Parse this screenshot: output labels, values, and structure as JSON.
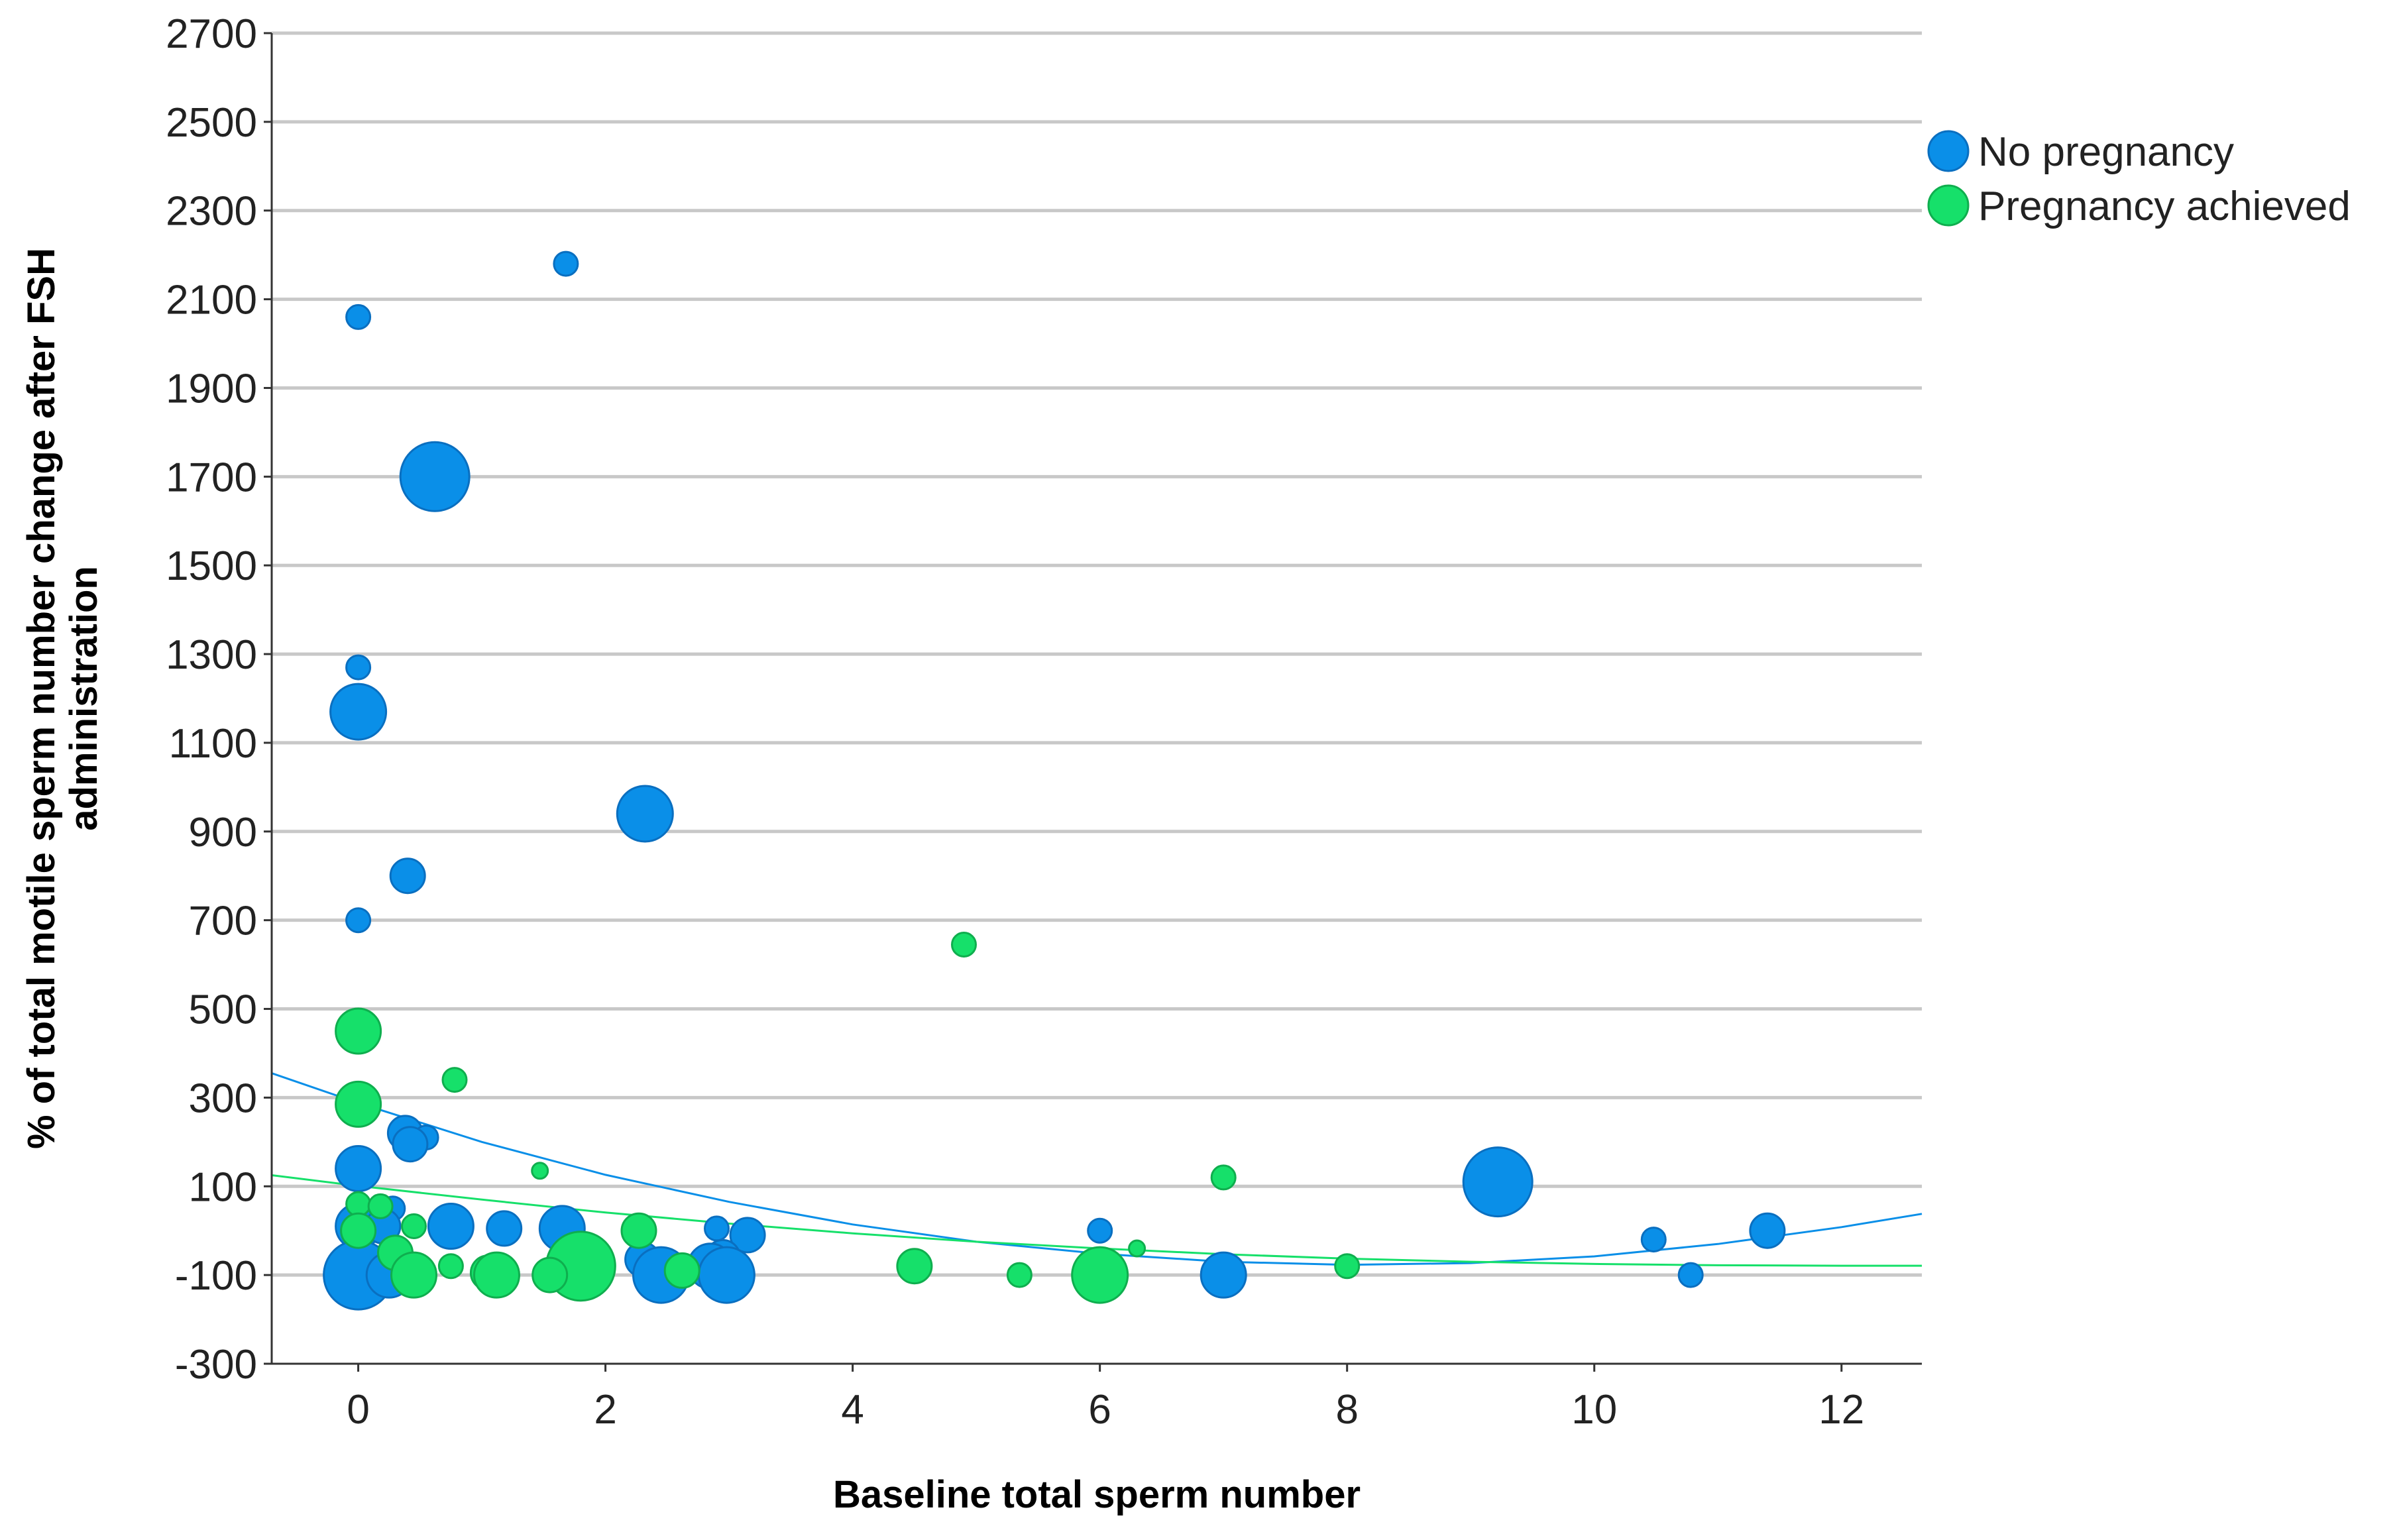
{
  "chart_data": {
    "type": "scatter",
    "xlabel": "Baseline total sperm number",
    "ylabel_lines": [
      "% of total motile sperm number change after FSH",
      "administration"
    ],
    "xlim": [
      -0.7,
      12.65
    ],
    "ylim": [
      -300,
      2700
    ],
    "x_ticks": [
      0,
      2,
      4,
      6,
      8,
      10,
      12
    ],
    "y_ticks": [
      -300,
      -100,
      100,
      300,
      500,
      700,
      900,
      1100,
      1300,
      1500,
      1700,
      1900,
      2100,
      2300,
      2500,
      2700
    ],
    "grid": "horizontal",
    "legend_position": "right",
    "series": [
      {
        "name": "No pregnancy",
        "color": "#0a8fe8",
        "edge": "#0a6fc0",
        "points": [
          {
            "x": 1.68,
            "y": 2180,
            "size": 1
          },
          {
            "x": 0.0,
            "y": 2060,
            "size": 1
          },
          {
            "x": 0.62,
            "y": 1700,
            "size": 5
          },
          {
            "x": 0.0,
            "y": 1270,
            "size": 1
          },
          {
            "x": 0.0,
            "y": 1170,
            "size": 4
          },
          {
            "x": 2.32,
            "y": 940,
            "size": 4
          },
          {
            "x": 0.4,
            "y": 800,
            "size": 2
          },
          {
            "x": 0.0,
            "y": 700,
            "size": 1
          },
          {
            "x": 0.38,
            "y": 220,
            "size": 2
          },
          {
            "x": 0.55,
            "y": 210,
            "size": 1
          },
          {
            "x": 0.42,
            "y": 195,
            "size": 2
          },
          {
            "x": 0.0,
            "y": 140,
            "size": 3
          },
          {
            "x": 0.0,
            "y": 10,
            "size": 3
          },
          {
            "x": 0.28,
            "y": 50,
            "size": 1
          },
          {
            "x": 0.2,
            "y": 10,
            "size": 2
          },
          {
            "x": 0.75,
            "y": 10,
            "size": 3
          },
          {
            "x": 1.18,
            "y": 5,
            "size": 2
          },
          {
            "x": 1.65,
            "y": 5,
            "size": 3
          },
          {
            "x": 2.9,
            "y": 5,
            "size": 1
          },
          {
            "x": 3.15,
            "y": -10,
            "size": 2
          },
          {
            "x": 2.95,
            "y": -60,
            "size": 2
          },
          {
            "x": 2.3,
            "y": -65,
            "size": 2
          },
          {
            "x": 2.85,
            "y": -80,
            "size": 3
          },
          {
            "x": 2.45,
            "y": -100,
            "size": 4
          },
          {
            "x": 2.98,
            "y": -100,
            "size": 4
          },
          {
            "x": 0.0,
            "y": -100,
            "size": 5
          },
          {
            "x": 0.25,
            "y": -100,
            "size": 3
          },
          {
            "x": 6.0,
            "y": 0,
            "size": 1
          },
          {
            "x": 7.0,
            "y": -100,
            "size": 3
          },
          {
            "x": 9.22,
            "y": 110,
            "size": 5
          },
          {
            "x": 10.48,
            "y": -20,
            "size": 1
          },
          {
            "x": 11.4,
            "y": 0,
            "size": 2
          },
          {
            "x": 10.78,
            "y": -100,
            "size": 1
          }
        ],
        "fit_curve": [
          {
            "x": -0.7,
            "y": 355
          },
          {
            "x": 0,
            "y": 288
          },
          {
            "x": 1,
            "y": 200
          },
          {
            "x": 2,
            "y": 126
          },
          {
            "x": 3,
            "y": 65
          },
          {
            "x": 4,
            "y": 14
          },
          {
            "x": 5,
            "y": -25
          },
          {
            "x": 6,
            "y": -52
          },
          {
            "x": 7,
            "y": -70
          },
          {
            "x": 8,
            "y": -77
          },
          {
            "x": 9,
            "y": -73
          },
          {
            "x": 10,
            "y": -58
          },
          {
            "x": 11,
            "y": -30
          },
          {
            "x": 12,
            "y": 8
          },
          {
            "x": 12.65,
            "y": 38
          }
        ]
      },
      {
        "name": "Pregnancy achieved",
        "color": "#16e06a",
        "edge": "#0fae4e",
        "points": [
          {
            "x": 4.9,
            "y": 645,
            "size": 1
          },
          {
            "x": 0.0,
            "y": 450,
            "size": 3
          },
          {
            "x": 0.78,
            "y": 340,
            "size": 1
          },
          {
            "x": 0.0,
            "y": 285,
            "size": 3
          },
          {
            "x": 1.47,
            "y": 135,
            "size": 0
          },
          {
            "x": 7.0,
            "y": 120,
            "size": 1
          },
          {
            "x": 0.0,
            "y": 60,
            "size": 1
          },
          {
            "x": 0.18,
            "y": 55,
            "size": 1
          },
          {
            "x": 0.45,
            "y": 10,
            "size": 1
          },
          {
            "x": 0.0,
            "y": 0,
            "size": 2
          },
          {
            "x": 2.27,
            "y": 0,
            "size": 2
          },
          {
            "x": 0.3,
            "y": -50,
            "size": 2
          },
          {
            "x": 6.3,
            "y": -40,
            "size": 0
          },
          {
            "x": 0.75,
            "y": -80,
            "size": 1
          },
          {
            "x": 1.8,
            "y": -80,
            "size": 5
          },
          {
            "x": 4.5,
            "y": -80,
            "size": 2
          },
          {
            "x": 8.0,
            "y": -80,
            "size": 1
          },
          {
            "x": 1.05,
            "y": -95,
            "size": 2
          },
          {
            "x": 1.12,
            "y": -100,
            "size": 3
          },
          {
            "x": 1.55,
            "y": -100,
            "size": 2
          },
          {
            "x": 0.45,
            "y": -100,
            "size": 3
          },
          {
            "x": 2.62,
            "y": -90,
            "size": 2
          },
          {
            "x": 5.35,
            "y": -100,
            "size": 1
          },
          {
            "x": 6.0,
            "y": -100,
            "size": 4
          }
        ],
        "fit_curve": [
          {
            "x": -0.7,
            "y": 125
          },
          {
            "x": 0,
            "y": 101
          },
          {
            "x": 1,
            "y": 70
          },
          {
            "x": 2,
            "y": 41
          },
          {
            "x": 3,
            "y": 16
          },
          {
            "x": 4,
            "y": -6
          },
          {
            "x": 5,
            "y": -25
          },
          {
            "x": 6,
            "y": -40
          },
          {
            "x": 7,
            "y": -53
          },
          {
            "x": 8,
            "y": -63
          },
          {
            "x": 9,
            "y": -70
          },
          {
            "x": 10,
            "y": -75
          },
          {
            "x": 11,
            "y": -78
          },
          {
            "x": 12,
            "y": -79
          },
          {
            "x": 12.65,
            "y": -79
          }
        ]
      }
    ]
  }
}
